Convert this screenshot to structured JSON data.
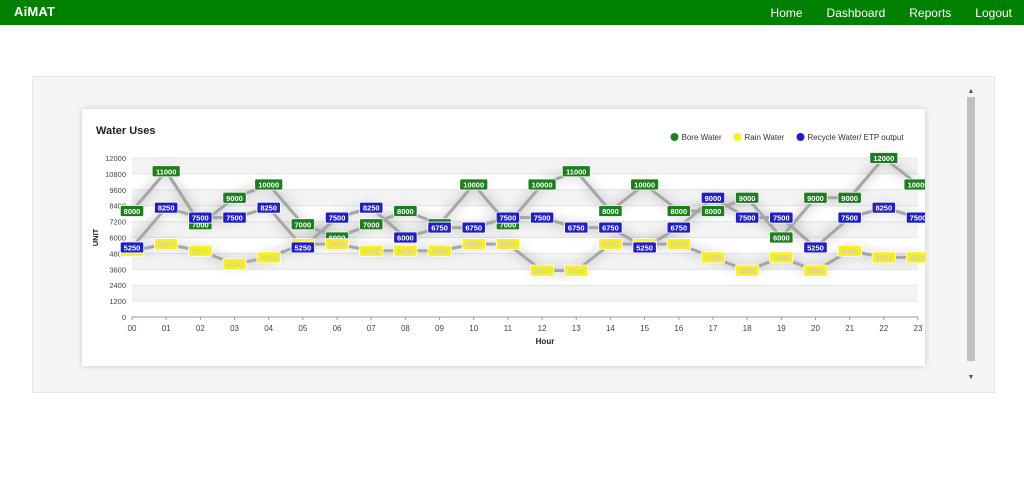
{
  "app": {
    "brand": "AiMAT"
  },
  "nav": {
    "items": [
      "Home",
      "Dashboard",
      "Reports",
      "Logout"
    ]
  },
  "colors": {
    "navbar": "#008000",
    "bore": "#1e7d1e",
    "rain": "#f5ee28",
    "recycle": "#2020c0"
  },
  "chart_data": {
    "type": "line",
    "title": "Water Uses",
    "xlabel": "Hour",
    "ylabel": "UNIT",
    "ylim": [
      0,
      12000
    ],
    "yticks": [
      0,
      1200,
      2400,
      3600,
      4800,
      6000,
      7200,
      8400,
      9600,
      10800,
      12000
    ],
    "categories": [
      "00",
      "01",
      "02",
      "03",
      "04",
      "05",
      "06",
      "07",
      "08",
      "09",
      "10",
      "11",
      "12",
      "13",
      "14",
      "15",
      "16",
      "17",
      "18",
      "19",
      "20",
      "21",
      "22",
      "23"
    ],
    "legend_position": "top-right",
    "series": [
      {
        "name": "Bore Water",
        "color": "#1e7d1e",
        "values": [
          8000,
          11000,
          7000,
          9000,
          10000,
          7000,
          6000,
          7000,
          8000,
          7000,
          10000,
          7000,
          10000,
          11000,
          8000,
          10000,
          8000,
          8000,
          9000,
          6000,
          9000,
          9000,
          12000,
          10000
        ]
      },
      {
        "name": "Rain Water",
        "color": "#f5ee28",
        "values": [
          5000,
          5500,
          5000,
          4000,
          4500,
          5500,
          5500,
          5000,
          5000,
          5000,
          5500,
          5500,
          3500,
          3500,
          5500,
          5500,
          5500,
          4500,
          3500,
          4500,
          3500,
          5000,
          4500,
          4500
        ]
      },
      {
        "name": "Recycle Water/ ETP output",
        "color": "#2020c0",
        "values": [
          5250,
          8250,
          7500,
          7500,
          8250,
          5250,
          7500,
          8250,
          6000,
          6750,
          6750,
          7500,
          7500,
          6750,
          6750,
          5250,
          6750,
          9000,
          7500,
          7500,
          5250,
          7500,
          8250,
          7500
        ]
      }
    ]
  }
}
